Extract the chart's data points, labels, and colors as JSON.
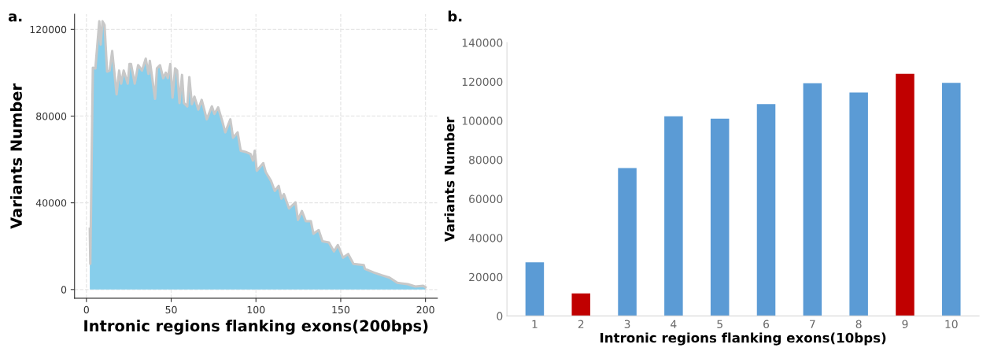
{
  "chart_data": [
    {
      "type": "area",
      "xlabel": "Intronic regions flanking exons(200bps)",
      "ylabel": "Variants Number",
      "annotations": [
        "a."
      ],
      "series": [
        {
          "color": "#87ceeb",
          "x": [
            2,
            2.3,
            3.8,
            5.3,
            7.6,
            8.4,
            9.5,
            10.7,
            12.2,
            13.7,
            15.2,
            17.8,
            19.3,
            20.5,
            22,
            24.4,
            25.4,
            26.3,
            28.5,
            30.5,
            32.8,
            35,
            36.6,
            37.4,
            40.5,
            41.6,
            43.4,
            45.3,
            46.8,
            48,
            49.5,
            50.8,
            52.3,
            53.5,
            54.9,
            56.4,
            57.5,
            59.5,
            60.7,
            62.2,
            63.7,
            66,
            68,
            71,
            74,
            75.5,
            77.7,
            80,
            81.9,
            84.9,
            86.5,
            89.2,
            91,
            93.8,
            96.8,
            98.2,
            99.3,
            100.5,
            104.3,
            105.8,
            108.9,
            111.1,
            113.4,
            115,
            116.5,
            119.5,
            123.3,
            124.8,
            127.1,
            129.4,
            132.4,
            133.9,
            137,
            139.2,
            143,
            146,
            148.3,
            151.4,
            154.4,
            157.5,
            163.6,
            164.3,
            169.7,
            174.2,
            178.8,
            183.4,
            189.5,
            194,
            198.6,
            200
          ],
          "values": [
            28000,
            11800,
            102300,
            102000,
            123700,
            113000,
            123700,
            122000,
            100500,
            101000,
            110000,
            90000,
            101000,
            95000,
            101000,
            95000,
            104000,
            104000,
            95000,
            103500,
            101000,
            106500,
            99500,
            105500,
            88000,
            102000,
            103500,
            97500,
            100000,
            97500,
            104000,
            88500,
            102000,
            101000,
            86000,
            99000,
            86000,
            84500,
            98000,
            85500,
            89000,
            83000,
            87500,
            78500,
            84500,
            81000,
            84000,
            78000,
            72500,
            78500,
            70000,
            72500,
            64000,
            63500,
            62500,
            59500,
            64000,
            54800,
            58300,
            54100,
            50100,
            45500,
            47800,
            42000,
            44000,
            37400,
            40200,
            32100,
            36200,
            31500,
            31500,
            25700,
            27400,
            22300,
            21700,
            17600,
            20500,
            14700,
            16400,
            11800,
            11300,
            9500,
            7800,
            6600,
            5500,
            3100,
            2500,
            1400,
            1700,
            1000
          ]
        }
      ],
      "xlim": [
        -7,
        207
      ],
      "xticks": [
        0,
        50,
        100,
        150,
        200
      ],
      "ylim": [
        -4000,
        127000
      ],
      "yticks": [
        0,
        40000,
        80000,
        120000
      ],
      "grid": true
    },
    {
      "type": "bar",
      "xlabel": "Intronic regions flanking exons(10bps)",
      "ylabel": "Variants Number",
      "annotations": [
        "b."
      ],
      "categories": [
        "1",
        "2",
        "3",
        "4",
        "5",
        "6",
        "7",
        "8",
        "9",
        "10"
      ],
      "values": [
        27500,
        11500,
        75700,
        102300,
        101000,
        108500,
        119200,
        114400,
        124000,
        119400
      ],
      "colors": [
        "#5b9bd5",
        "#c00000",
        "#5b9bd5",
        "#5b9bd5",
        "#5b9bd5",
        "#5b9bd5",
        "#5b9bd5",
        "#5b9bd5",
        "#c00000",
        "#5b9bd5"
      ],
      "ylim": [
        0,
        140000
      ],
      "yticks": [
        0,
        20000,
        40000,
        60000,
        80000,
        100000,
        120000,
        140000
      ]
    }
  ]
}
